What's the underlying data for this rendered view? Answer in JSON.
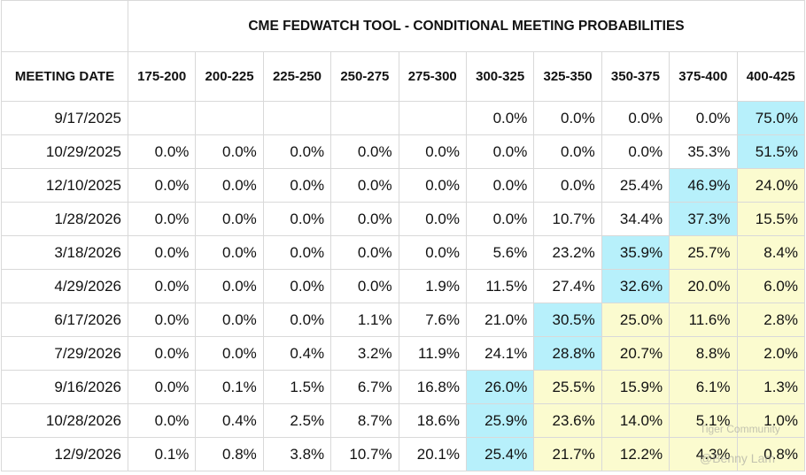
{
  "header": {
    "title": "CME FEDWATCH TOOL - CONDITIONAL MEETING PROBABILITIES"
  },
  "table": {
    "columns": [
      "MEETING DATE",
      "175-200",
      "200-225",
      "225-250",
      "250-275",
      "275-300",
      "300-325",
      "325-350",
      "350-375",
      "375-400",
      "400-425"
    ],
    "rows": [
      [
        "9/17/2025",
        null,
        null,
        null,
        null,
        null,
        "0.0%",
        "0.0%",
        "0.0%",
        "0.0%",
        "75.0%"
      ],
      [
        "10/29/2025",
        "0.0%",
        "0.0%",
        "0.0%",
        "0.0%",
        "0.0%",
        "0.0%",
        "0.0%",
        "0.0%",
        "35.3%",
        "51.5%"
      ],
      [
        "12/10/2025",
        "0.0%",
        "0.0%",
        "0.0%",
        "0.0%",
        "0.0%",
        "0.0%",
        "0.0%",
        "25.4%",
        "46.9%",
        "24.0%"
      ],
      [
        "1/28/2026",
        "0.0%",
        "0.0%",
        "0.0%",
        "0.0%",
        "0.0%",
        "0.0%",
        "10.7%",
        "34.4%",
        "37.3%",
        "15.5%"
      ],
      [
        "3/18/2026",
        "0.0%",
        "0.0%",
        "0.0%",
        "0.0%",
        "0.0%",
        "5.6%",
        "23.2%",
        "35.9%",
        "25.7%",
        "8.4%"
      ],
      [
        "4/29/2026",
        "0.0%",
        "0.0%",
        "0.0%",
        "0.0%",
        "1.9%",
        "11.5%",
        "27.4%",
        "32.6%",
        "20.0%",
        "6.0%"
      ],
      [
        "6/17/2026",
        "0.0%",
        "0.0%",
        "0.0%",
        "1.1%",
        "7.6%",
        "21.0%",
        "30.5%",
        "25.0%",
        "11.6%",
        "2.8%"
      ],
      [
        "7/29/2026",
        "0.0%",
        "0.0%",
        "0.4%",
        "3.2%",
        "11.9%",
        "24.1%",
        "28.8%",
        "20.7%",
        "8.8%",
        "2.0%"
      ],
      [
        "9/16/2026",
        "0.0%",
        "0.1%",
        "1.5%",
        "6.7%",
        "16.8%",
        "26.0%",
        "25.5%",
        "15.9%",
        "6.1%",
        "1.3%"
      ],
      [
        "10/28/2026",
        "0.0%",
        "0.4%",
        "2.5%",
        "8.7%",
        "18.6%",
        "25.9%",
        "23.6%",
        "14.0%",
        "5.1%",
        "1.0%"
      ],
      [
        "12/9/2026",
        "0.1%",
        "0.8%",
        "3.8%",
        "10.7%",
        "20.1%",
        "25.4%",
        "21.7%",
        "12.2%",
        "4.3%",
        "0.8%"
      ]
    ],
    "highlight_colors": {
      "max": "#b7f0fb",
      "after_max": "#fbfbcf"
    }
  },
  "watermark": [
    "Tiger Community",
    "@Benny Lam"
  ]
}
